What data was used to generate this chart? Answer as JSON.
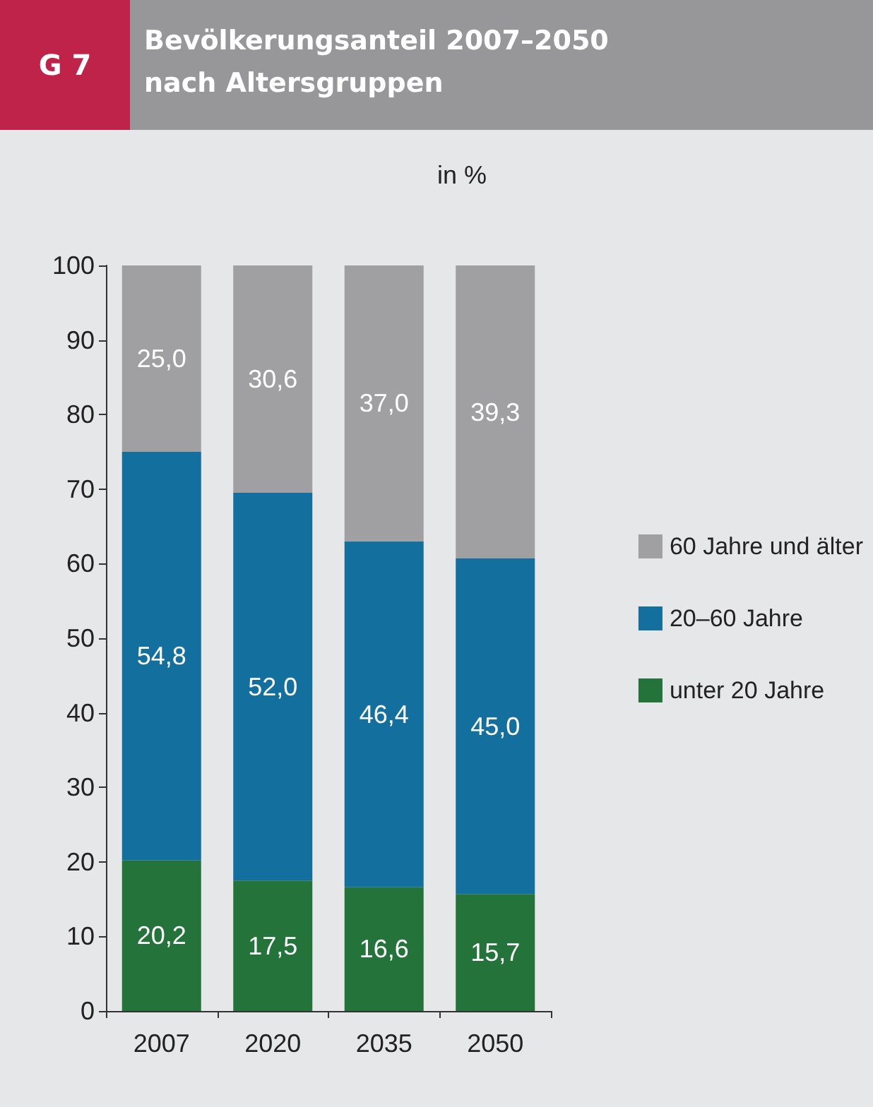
{
  "chart_data": {
    "type": "bar",
    "title": "Bevölkerungsanteil 2007–2050\nnach Altersgruppen",
    "subtitle": "in %",
    "annotations": [
      "G 7"
    ],
    "categories": [
      "2007",
      "2020",
      "2035",
      "2050"
    ],
    "stacked": true,
    "ylim": [
      0,
      100
    ],
    "yticks": [
      0,
      10,
      20,
      30,
      40,
      50,
      60,
      70,
      80,
      90,
      100
    ],
    "legend": "right",
    "series": [
      {
        "name": "unter 20 Jahre",
        "color": "#24733a",
        "values": [
          20.2,
          17.5,
          16.6,
          15.7
        ],
        "value_labels": [
          "20,2",
          "17,5",
          "16,6",
          "15,7"
        ]
      },
      {
        "name": "20–60 Jahre",
        "color": "#136f9e",
        "values": [
          54.8,
          52.0,
          46.4,
          45.0
        ],
        "value_labels": [
          "54,8",
          "52,0",
          "46,4",
          "45,0"
        ]
      },
      {
        "name": "60 Jahre und älter",
        "color": "#a0a0a2",
        "values": [
          25.0,
          30.6,
          37.0,
          39.3
        ],
        "value_labels": [
          "25,0",
          "30,6",
          "37,0",
          "39,3"
        ]
      }
    ]
  }
}
